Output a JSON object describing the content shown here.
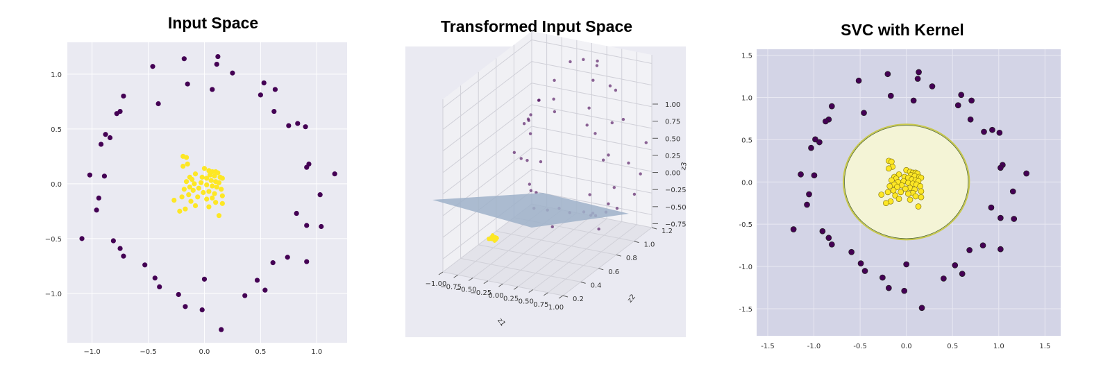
{
  "chart_data": [
    {
      "type": "scatter",
      "title": "Input Space",
      "xlim": [
        -1.22,
        1.27
      ],
      "ylim": [
        -1.45,
        1.29
      ],
      "x_ticks": [
        "−1.0",
        "−0.5",
        "0.0",
        "0.5",
        "1.0"
      ],
      "x_tick_values": [
        -1.0,
        -0.5,
        0.0,
        0.5,
        1.0
      ],
      "y_ticks": [
        "1.0",
        "0.5",
        "0.0",
        "−0.5",
        "−1.0"
      ],
      "y_tick_values": [
        1.0,
        0.5,
        0.0,
        -0.5,
        -1.0
      ],
      "grid": true,
      "series": [
        {
          "class": "outer",
          "color": "#440154",
          "points": [
            [
              0.12,
              1.16
            ],
            [
              -0.18,
              1.14
            ],
            [
              0.11,
              1.09
            ],
            [
              -0.46,
              1.07
            ],
            [
              0.25,
              1.01
            ],
            [
              0.53,
              0.92
            ],
            [
              -0.15,
              0.91
            ],
            [
              0.07,
              0.86
            ],
            [
              0.63,
              0.86
            ],
            [
              0.5,
              0.81
            ],
            [
              -0.72,
              0.8
            ],
            [
              -0.41,
              0.73
            ],
            [
              -0.75,
              0.66
            ],
            [
              0.62,
              0.66
            ],
            [
              -0.78,
              0.64
            ],
            [
              0.83,
              0.55
            ],
            [
              0.75,
              0.53
            ],
            [
              0.9,
              0.52
            ],
            [
              -0.88,
              0.45
            ],
            [
              -0.84,
              0.42
            ],
            [
              -0.92,
              0.36
            ],
            [
              0.93,
              0.18
            ],
            [
              0.91,
              0.15
            ],
            [
              1.16,
              0.09
            ],
            [
              -1.02,
              0.08
            ],
            [
              -0.89,
              0.07
            ],
            [
              1.03,
              -0.1
            ],
            [
              -0.94,
              -0.13
            ],
            [
              -0.96,
              -0.24
            ],
            [
              0.82,
              -0.27
            ],
            [
              0.91,
              -0.38
            ],
            [
              1.04,
              -0.39
            ],
            [
              -1.09,
              -0.5
            ],
            [
              -0.81,
              -0.52
            ],
            [
              -0.75,
              -0.59
            ],
            [
              -0.72,
              -0.66
            ],
            [
              0.74,
              -0.67
            ],
            [
              0.61,
              -0.72
            ],
            [
              0.91,
              -0.71
            ],
            [
              -0.53,
              -0.74
            ],
            [
              -0.44,
              -0.86
            ],
            [
              0.47,
              -0.88
            ],
            [
              -0.0,
              -0.87
            ],
            [
              -0.4,
              -0.94
            ],
            [
              0.54,
              -0.97
            ],
            [
              -0.23,
              -1.01
            ],
            [
              0.36,
              -1.02
            ],
            [
              -0.17,
              -1.12
            ],
            [
              -0.02,
              -1.15
            ],
            [
              0.15,
              -1.33
            ]
          ]
        },
        {
          "class": "inner",
          "color": "#fde725",
          "points": [
            [
              -0.19,
              0.25
            ],
            [
              -0.16,
              0.24
            ],
            [
              -0.15,
              0.18
            ],
            [
              0.0,
              0.14
            ],
            [
              0.04,
              0.12
            ],
            [
              0.07,
              0.11
            ],
            [
              0.1,
              0.11
            ],
            [
              0.12,
              0.1
            ],
            [
              -0.08,
              0.09
            ],
            [
              0.05,
              0.08
            ],
            [
              0.09,
              0.07
            ],
            [
              0.14,
              0.06
            ],
            [
              -0.13,
              0.06
            ],
            [
              -0.02,
              0.06
            ],
            [
              0.02,
              0.05
            ],
            [
              0.16,
              0.05
            ],
            [
              -0.11,
              0.04
            ],
            [
              0.06,
              0.03
            ],
            [
              0.1,
              0.02
            ],
            [
              -0.16,
              0.02
            ],
            [
              -0.03,
              0.01
            ],
            [
              0.13,
              0.01
            ],
            [
              -0.09,
              0.0
            ],
            [
              0.02,
              -0.01
            ],
            [
              0.07,
              -0.02
            ],
            [
              -0.13,
              -0.03
            ],
            [
              0.11,
              -0.03
            ],
            [
              -0.05,
              -0.04
            ],
            [
              0.15,
              -0.05
            ],
            [
              -0.18,
              -0.05
            ],
            [
              -0.1,
              -0.06
            ],
            [
              0.04,
              -0.07
            ],
            [
              -0.01,
              -0.08
            ],
            [
              0.09,
              -0.09
            ],
            [
              -0.14,
              -0.1
            ],
            [
              0.16,
              -0.11
            ],
            [
              -0.06,
              -0.12
            ],
            [
              -0.2,
              -0.12
            ],
            [
              0.07,
              -0.13
            ],
            [
              0.02,
              -0.14
            ],
            [
              -0.27,
              -0.15
            ],
            [
              -0.12,
              -0.16
            ],
            [
              0.1,
              -0.17
            ],
            [
              0.16,
              -0.18
            ],
            [
              -0.08,
              -0.2
            ],
            [
              -0.17,
              -0.23
            ],
            [
              0.04,
              -0.21
            ],
            [
              -0.22,
              -0.25
            ],
            [
              0.13,
              -0.29
            ],
            [
              -0.19,
              0.16
            ]
          ]
        }
      ]
    },
    {
      "type": "scatter",
      "title": "Transformed Input Space",
      "z1_ticks": [
        "−1.00",
        "−0.75",
        "−0.50",
        "−0.25",
        "0.00",
        "0.25",
        "0.50",
        "0.75",
        "1.00"
      ],
      "z1_tick_values": [
        -1.0,
        -0.75,
        -0.5,
        -0.25,
        0.0,
        0.25,
        0.5,
        0.75,
        1.0
      ],
      "z2_ticks": [
        "0.2",
        "0.4",
        "0.6",
        "0.8",
        "1.0",
        "1.2"
      ],
      "z2_tick_values": [
        0.2,
        0.4,
        0.6,
        0.8,
        1.0,
        1.2
      ],
      "z3_ticks": [
        "1.00",
        "0.75",
        "0.50",
        "0.25",
        "0.00",
        "−0.25",
        "−0.50",
        "−0.75"
      ],
      "z3_tick_values": [
        1.0,
        0.75,
        0.5,
        0.25,
        0.0,
        -0.25,
        -0.5,
        -0.75
      ],
      "xlabel": "z1",
      "ylabel": "z2",
      "zlabel": "z3",
      "plane_color": "#9fb2c9",
      "grid": true
    },
    {
      "type": "scatter",
      "title": "SVC with Kernel",
      "xlim": [
        -1.62,
        1.67
      ],
      "ylim": [
        -1.82,
        1.57
      ],
      "x_ticks": [
        "-1.5",
        "-1.0",
        "-0.5",
        "0.0",
        "0.5",
        "1.0",
        "1.5"
      ],
      "x_tick_values": [
        -1.5,
        -1.0,
        -0.5,
        0.0,
        0.5,
        1.0,
        1.5
      ],
      "y_ticks": [
        "1.5",
        "1.0",
        "0.5",
        "0.0",
        "-0.5",
        "-1.0",
        "-1.5"
      ],
      "y_tick_values": [
        1.5,
        1.0,
        0.5,
        0.0,
        -0.5,
        -1.0,
        -1.5
      ],
      "background_color": "#d3d4e6",
      "decision_region_color": "#f4f4d6",
      "decision_region_center": [
        0.0,
        0.0
      ],
      "decision_region_radii": [
        0.67,
        0.67
      ],
      "grid": true
    }
  ]
}
